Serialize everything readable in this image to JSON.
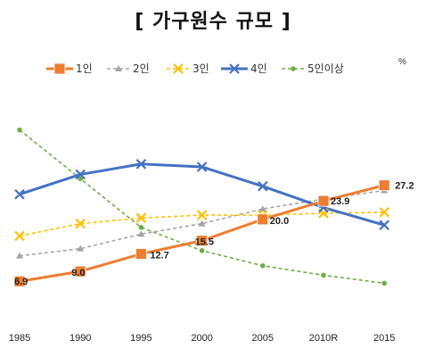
{
  "chart_data": {
    "type": "line",
    "title": "[ 가구원수 규모 ]",
    "unit": "%",
    "xlabel": "",
    "ylabel": "",
    "ylim": [
      0,
      40
    ],
    "categories": [
      "1985",
      "1990",
      "1995",
      "2000",
      "2005",
      "2010R",
      "2015"
    ],
    "legend_position": "top",
    "grid": false,
    "series": [
      {
        "name": "1인",
        "values": [
          6.9,
          9.0,
          12.7,
          15.5,
          20.0,
          23.9,
          27.2
        ],
        "labels": [
          "6.9",
          "9.0",
          "12.7",
          "15.5",
          "20.0",
          "23.9",
          "27.2"
        ],
        "color": "#ED7D31",
        "style": "solid",
        "marker": "square"
      },
      {
        "name": "2인",
        "values": [
          12.3,
          13.8,
          16.9,
          19.1,
          22.2,
          24.3,
          26.1
        ],
        "color": "#A5A5A5",
        "style": "dashed",
        "marker": "triangle"
      },
      {
        "name": "3인",
        "values": [
          16.5,
          19.1,
          20.3,
          20.9,
          20.9,
          21.3,
          21.5
        ],
        "color": "#FFC000",
        "style": "dashed",
        "marker": "x"
      },
      {
        "name": "4인",
        "values": [
          25.3,
          29.5,
          31.7,
          31.1,
          27.0,
          22.5,
          18.8
        ],
        "color": "#4472C4",
        "style": "solid",
        "marker": "x"
      },
      {
        "name": "5인이상",
        "values": [
          38.9,
          28.6,
          18.3,
          13.4,
          10.2,
          8.2,
          6.5
        ],
        "color": "#70AD47",
        "style": "dashed",
        "marker": "dot"
      }
    ]
  }
}
